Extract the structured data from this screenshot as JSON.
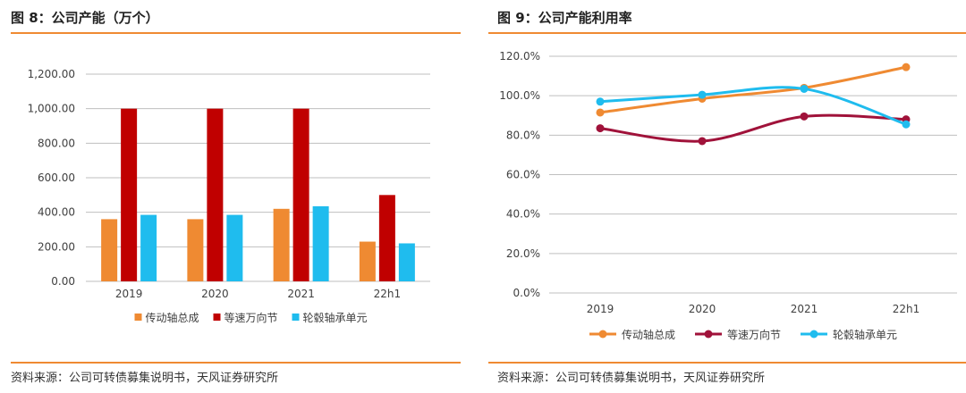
{
  "colors": {
    "orange": "#ef8a32",
    "crimson": "#c00000",
    "sky": "#1fbcee",
    "maroon": "#a0123a",
    "axis": "#bfbfbf",
    "text": "#404040"
  },
  "left": {
    "title": "图 8：公司产能（万个）",
    "source": "资料来源：公司可转债募集说明书，天风证券研究所"
  },
  "right": {
    "title": "图 9：公司产能利用率",
    "source": "资料来源：公司可转债募集说明书，天风证券研究所"
  },
  "chart_data": [
    {
      "type": "bar",
      "title": "公司产能（万个）",
      "categories": [
        "2019",
        "2020",
        "2021",
        "22h1"
      ],
      "series": [
        {
          "name": "传动轴总成",
          "color": "#ef8a32",
          "values": [
            360,
            360,
            420,
            230
          ]
        },
        {
          "name": "等速万向节",
          "color": "#c00000",
          "values": [
            1000,
            1000,
            1000,
            500
          ]
        },
        {
          "name": "轮毂轴承单元",
          "color": "#1fbcee",
          "values": [
            385,
            385,
            435,
            220
          ]
        }
      ],
      "ylim": [
        0,
        1200
      ],
      "yticks": [
        0,
        200,
        400,
        600,
        800,
        1000,
        1200
      ],
      "ytick_labels": [
        "0.00",
        "200.00",
        "400.00",
        "600.00",
        "800.00",
        "1,000.00",
        "1,200.00"
      ],
      "grid": true,
      "legend": "bottom"
    },
    {
      "type": "line",
      "title": "公司产能利用率",
      "categories": [
        "2019",
        "2020",
        "2021",
        "22h1"
      ],
      "series": [
        {
          "name": "传动轴总成",
          "color": "#ef8a32",
          "values": [
            91.5,
            98.5,
            104.0,
            114.5
          ]
        },
        {
          "name": "等速万向节",
          "color": "#a0123a",
          "values": [
            83.5,
            77.0,
            89.5,
            88.0
          ]
        },
        {
          "name": "轮毂轴承单元",
          "color": "#1fbcee",
          "values": [
            97.0,
            100.5,
            103.5,
            85.5
          ]
        }
      ],
      "ylim": [
        0,
        120
      ],
      "yticks": [
        0,
        20,
        40,
        60,
        80,
        100,
        120
      ],
      "ytick_labels": [
        "0.0%",
        "20.0%",
        "40.0%",
        "60.0%",
        "80.0%",
        "100.0%",
        "120.0%"
      ],
      "grid": true,
      "legend": "bottom"
    }
  ]
}
